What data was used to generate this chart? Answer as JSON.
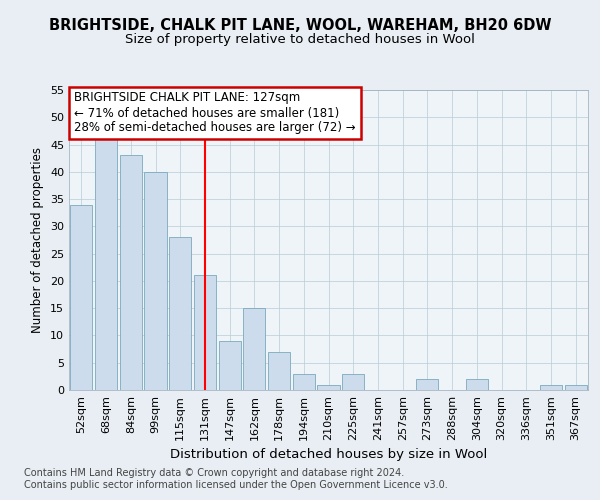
{
  "title": "BRIGHTSIDE, CHALK PIT LANE, WOOL, WAREHAM, BH20 6DW",
  "subtitle": "Size of property relative to detached houses in Wool",
  "xlabel": "Distribution of detached houses by size in Wool",
  "ylabel": "Number of detached properties",
  "categories": [
    "52sqm",
    "68sqm",
    "84sqm",
    "99sqm",
    "115sqm",
    "131sqm",
    "147sqm",
    "162sqm",
    "178sqm",
    "194sqm",
    "210sqm",
    "225sqm",
    "241sqm",
    "257sqm",
    "273sqm",
    "288sqm",
    "304sqm",
    "320sqm",
    "336sqm",
    "351sqm",
    "367sqm"
  ],
  "values": [
    34,
    46,
    43,
    40,
    28,
    21,
    9,
    15,
    7,
    3,
    1,
    3,
    0,
    0,
    2,
    0,
    2,
    0,
    0,
    1,
    1
  ],
  "bar_color": "#ccdcec",
  "bar_edge_color": "#7aaabb",
  "highlight_line_index": 5,
  "annotation_line1": "BRIGHTSIDE CHALK PIT LANE: 127sqm",
  "annotation_line2": "← 71% of detached houses are smaller (181)",
  "annotation_line3": "28% of semi-detached houses are larger (72) →",
  "annotation_box_color": "#ffffff",
  "annotation_box_edge_color": "#cc0000",
  "ylim": [
    0,
    55
  ],
  "yticks": [
    0,
    5,
    10,
    15,
    20,
    25,
    30,
    35,
    40,
    45,
    50,
    55
  ],
  "footer_line1": "Contains HM Land Registry data © Crown copyright and database right 2024.",
  "footer_line2": "Contains public sector information licensed under the Open Government Licence v3.0.",
  "title_fontsize": 10.5,
  "subtitle_fontsize": 9.5,
  "xlabel_fontsize": 9.5,
  "ylabel_fontsize": 8.5,
  "tick_fontsize": 8,
  "annotation_fontsize": 8.5,
  "footer_fontsize": 7,
  "bg_color": "#e8eef4",
  "plot_bg_color": "#eef4f8"
}
